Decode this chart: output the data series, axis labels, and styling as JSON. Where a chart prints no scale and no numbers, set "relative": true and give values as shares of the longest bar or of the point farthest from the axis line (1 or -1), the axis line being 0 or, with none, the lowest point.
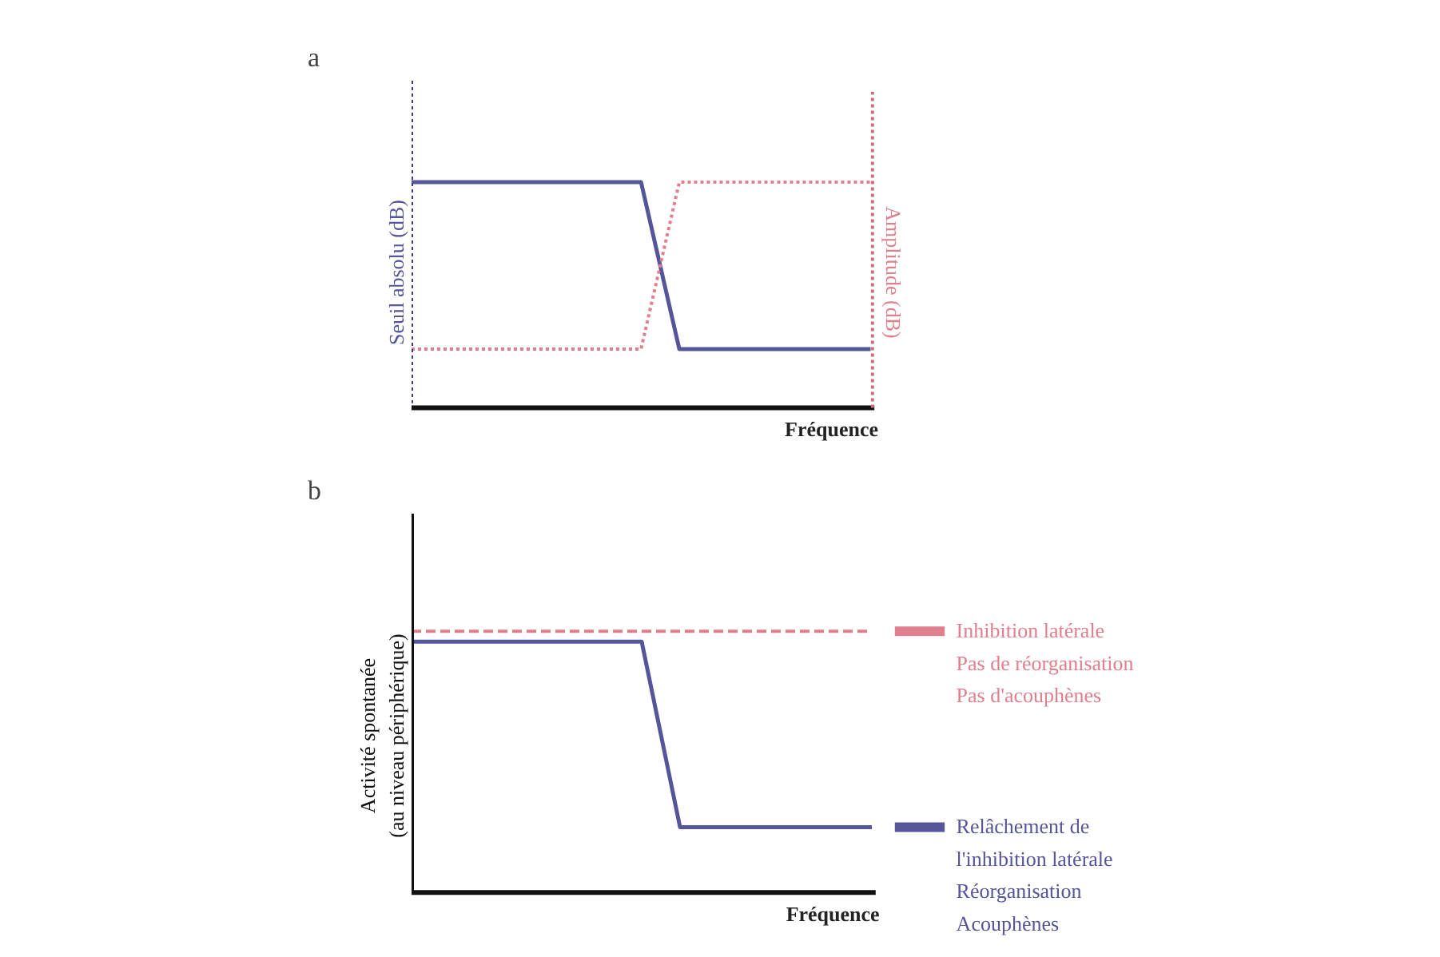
{
  "chart_data": [
    {
      "type": "line",
      "title": "a",
      "xlabel": "Fréquence",
      "ylabel": "Seuil absolu (dB)",
      "y2label": "Amplitude (dB)",
      "relative": true,
      "categories": [
        null,
        null,
        null,
        null,
        null,
        null,
        null,
        null,
        null,
        null,
        null,
        null,
        null
      ],
      "series": [
        {
          "color": "#55559a",
          "line_style": "solid",
          "values": [
            1,
            1,
            1,
            1,
            1,
            1,
            1,
            0.26,
            0.26,
            0.26,
            0.26,
            0.26,
            0.26
          ]
        },
        {
          "color": "#e0808f",
          "line_style": "dotted",
          "values": [
            0.26,
            0.26,
            0.26,
            0.26,
            0.26,
            0.26,
            0.26,
            1,
            1,
            1,
            1,
            1,
            1
          ]
        }
      ]
    },
    {
      "type": "line",
      "title": "b",
      "xlabel": "Fréquence",
      "ylabel": "Activité spontanée\n(au niveau périphérique)",
      "relative": true,
      "categories": [
        null,
        null,
        null,
        null,
        null,
        null,
        null,
        null,
        null,
        null,
        null,
        null,
        null
      ],
      "series": [
        {
          "color": "#e0808f",
          "line_style": "dashed",
          "values": [
            1,
            1,
            1,
            1,
            1,
            1,
            1,
            1,
            1,
            1,
            1,
            1,
            1
          ]
        },
        {
          "color": "#55559a",
          "line_style": "solid",
          "values": [
            0.96,
            0.96,
            0.96,
            0.96,
            0.96,
            0.96,
            0.96,
            0.25,
            0.25,
            0.25,
            0.25,
            0.25,
            0.25
          ]
        }
      ],
      "annotations": [
        "Inhibition latérale\nPas de réorganisation\nPas d'acouphènes",
        "Relâchement de\nl'inhibition latérale\nRéorganisation\nAcouphènes"
      ]
    }
  ]
}
